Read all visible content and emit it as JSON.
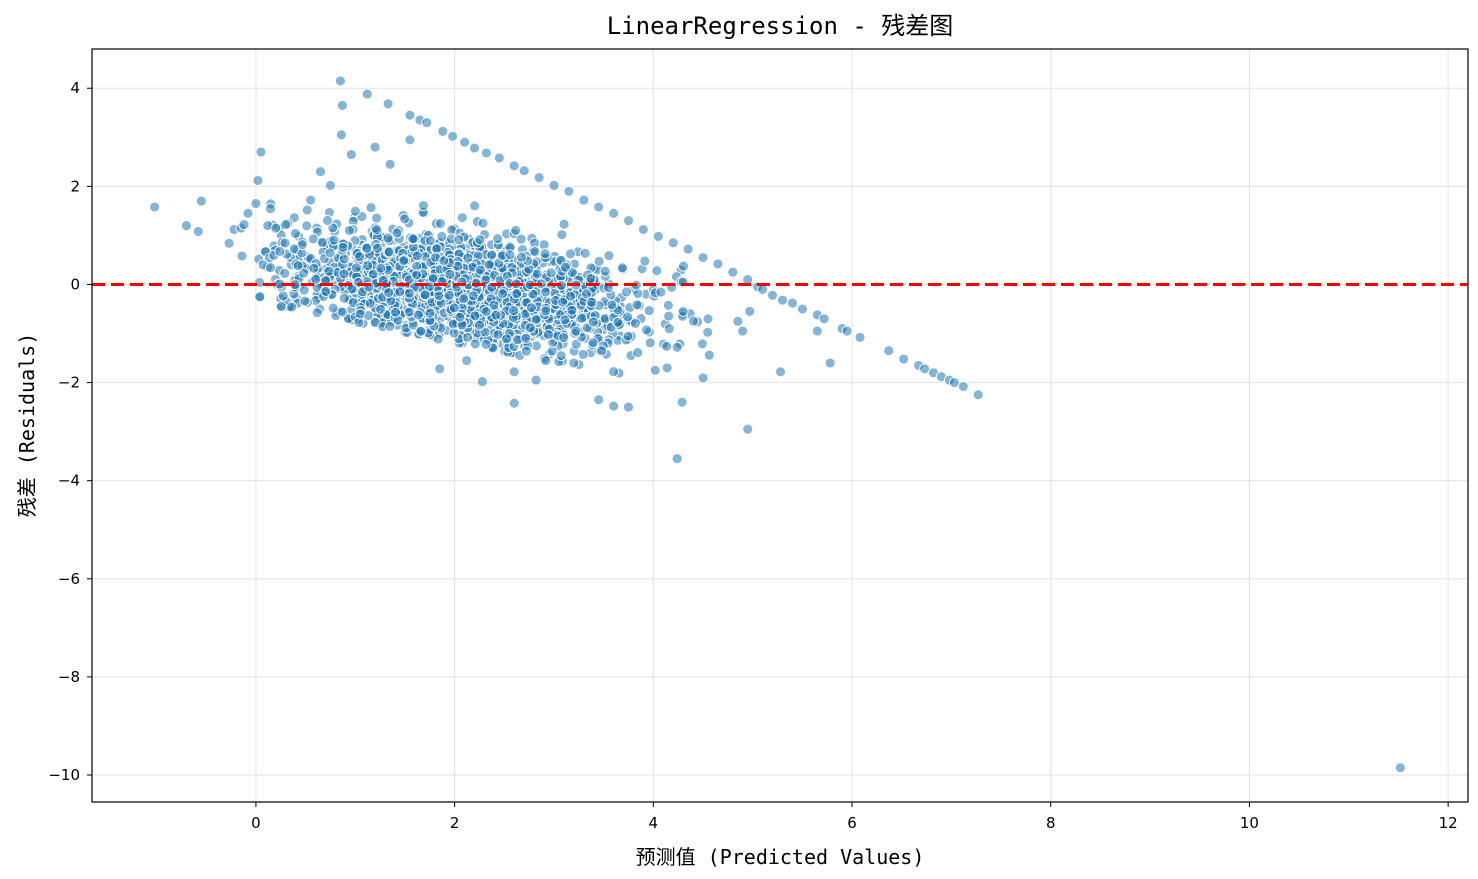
{
  "chart_data": {
    "type": "scatter",
    "title": "LinearRegression - 残差图",
    "xlabel": "预测值 (Predicted Values)",
    "ylabel": "残差 (Residuals)",
    "xlim": [
      -1.65,
      12.2
    ],
    "ylim": [
      -10.55,
      4.8
    ],
    "xticks": [
      0,
      2,
      4,
      6,
      8,
      10,
      12
    ],
    "yticks": [
      -10,
      -8,
      -6,
      -4,
      -2,
      0,
      2,
      4
    ],
    "xtick_labels": [
      "0",
      "2",
      "4",
      "6",
      "8",
      "10",
      "12"
    ],
    "ytick_labels": [
      "−10",
      "−8",
      "−6",
      "−4",
      "−2",
      "0",
      "2",
      "4"
    ],
    "grid": true,
    "reference_line": {
      "y": 0,
      "color": "#ff0000",
      "style": "dashed"
    },
    "point_color": "#1f77b4",
    "point_edge_color": "#ffffff",
    "point_alpha": 0.55,
    "cluster": {
      "description_points_count": 1800,
      "x_range": [
        0.0,
        5.1
      ],
      "residual_lower_edge_slope": -0.45,
      "residual_upper_line": "y = 5.05 - x"
    },
    "points": [
      [
        -1.02,
        1.58
      ],
      [
        -0.7,
        1.2
      ],
      [
        -0.58,
        1.08
      ],
      [
        -0.55,
        1.7
      ],
      [
        -0.27,
        0.84
      ],
      [
        -0.22,
        1.12
      ],
      [
        -0.15,
        1.15
      ],
      [
        -0.14,
        0.58
      ],
      [
        -0.12,
        1.22
      ],
      [
        -0.08,
        1.45
      ],
      [
        0.0,
        1.65
      ],
      [
        0.02,
        2.12
      ],
      [
        0.05,
        2.7
      ],
      [
        0.12,
        1.2
      ],
      [
        0.2,
        1.15
      ],
      [
        0.3,
        1.22
      ],
      [
        0.85,
        4.15
      ],
      [
        0.87,
        3.65
      ],
      [
        0.86,
        3.05
      ],
      [
        0.96,
        2.65
      ],
      [
        1.12,
        3.88
      ],
      [
        1.33,
        3.68
      ],
      [
        1.2,
        2.8
      ],
      [
        0.65,
        2.3
      ],
      [
        0.75,
        2.02
      ],
      [
        0.55,
        1.72
      ],
      [
        1.35,
        2.45
      ],
      [
        1.55,
        2.95
      ],
      [
        1.55,
        3.45
      ],
      [
        1.65,
        3.35
      ],
      [
        1.72,
        3.3
      ],
      [
        1.88,
        3.12
      ],
      [
        1.98,
        3.02
      ],
      [
        2.1,
        2.9
      ],
      [
        2.2,
        2.78
      ],
      [
        2.32,
        2.68
      ],
      [
        2.45,
        2.58
      ],
      [
        2.6,
        2.42
      ],
      [
        2.7,
        2.32
      ],
      [
        2.85,
        2.18
      ],
      [
        3.0,
        2.02
      ],
      [
        3.15,
        1.9
      ],
      [
        3.3,
        1.72
      ],
      [
        3.45,
        1.58
      ],
      [
        3.6,
        1.45
      ],
      [
        3.75,
        1.3
      ],
      [
        3.9,
        1.12
      ],
      [
        4.05,
        0.98
      ],
      [
        4.2,
        0.85
      ],
      [
        4.35,
        0.72
      ],
      [
        4.5,
        0.55
      ],
      [
        4.65,
        0.42
      ],
      [
        4.8,
        0.25
      ],
      [
        4.95,
        0.1
      ],
      [
        5.05,
        -0.05
      ],
      [
        5.1,
        -0.1
      ],
      [
        5.2,
        -0.22
      ],
      [
        5.3,
        -0.32
      ],
      [
        5.4,
        -0.38
      ],
      [
        5.5,
        -0.5
      ],
      [
        5.65,
        -0.62
      ],
      [
        5.72,
        -0.7
      ],
      [
        5.9,
        -0.9
      ],
      [
        5.95,
        -0.95
      ],
      [
        6.08,
        -1.08
      ],
      [
        6.37,
        -1.35
      ],
      [
        6.52,
        -1.52
      ],
      [
        6.67,
        -1.65
      ],
      [
        6.73,
        -1.72
      ],
      [
        6.82,
        -1.8
      ],
      [
        6.9,
        -1.88
      ],
      [
        6.98,
        -1.95
      ],
      [
        7.03,
        -2.0
      ],
      [
        7.12,
        -2.08
      ],
      [
        7.27,
        -2.25
      ],
      [
        4.9,
        -0.95
      ],
      [
        4.85,
        -0.75
      ],
      [
        4.97,
        -0.55
      ],
      [
        4.55,
        -0.7
      ],
      [
        5.65,
        -0.95
      ],
      [
        5.28,
        -1.78
      ],
      [
        5.78,
        -1.6
      ],
      [
        4.24,
        -1.28
      ],
      [
        4.14,
        -1.7
      ],
      [
        4.02,
        -1.75
      ],
      [
        4.29,
        -2.4
      ],
      [
        4.24,
        -3.55
      ],
      [
        4.95,
        -2.95
      ],
      [
        3.45,
        -2.35
      ],
      [
        3.6,
        -2.48
      ],
      [
        3.75,
        -2.5
      ],
      [
        3.48,
        -1.35
      ],
      [
        3.2,
        -1.6
      ],
      [
        2.6,
        -2.42
      ],
      [
        2.82,
        -1.95
      ],
      [
        2.28,
        -1.98
      ],
      [
        2.6,
        -1.78
      ],
      [
        1.85,
        -1.72
      ],
      [
        2.12,
        -1.55
      ],
      [
        4.3,
        -0.55
      ],
      [
        4.28,
        0.05
      ],
      [
        4.3,
        0.05
      ],
      [
        11.52,
        -9.85
      ]
    ]
  }
}
